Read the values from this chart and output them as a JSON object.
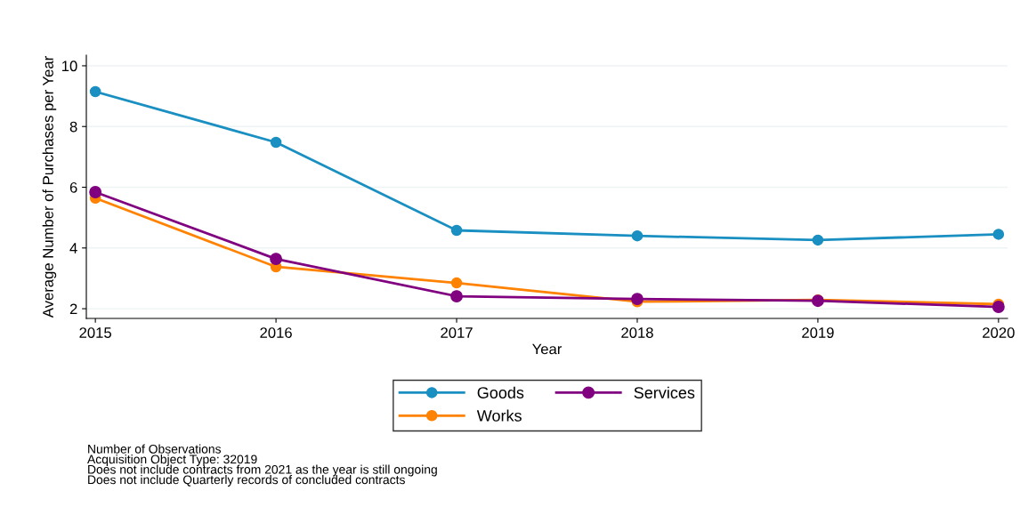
{
  "chart_data": {
    "type": "line",
    "xlabel": "Year",
    "ylabel": "Average Number of Purchases per Year",
    "x": [
      2015,
      2016,
      2017,
      2018,
      2019,
      2020
    ],
    "series": [
      {
        "name": "Goods",
        "color": "#1a8fc1",
        "values": [
          9.15,
          7.48,
          4.58,
          4.4,
          4.26,
          4.45
        ]
      },
      {
        "name": "Services",
        "color": "#800080",
        "values": [
          5.84,
          3.64,
          2.41,
          2.32,
          2.26,
          2.06
        ]
      },
      {
        "name": "Works",
        "color": "#ff8200",
        "values": [
          5.64,
          3.38,
          2.85,
          2.23,
          2.29,
          2.15
        ]
      }
    ],
    "xlim": [
      2014.95,
      2020.05
    ],
    "xticks": [
      2015,
      2016,
      2017,
      2018,
      2019,
      2020
    ],
    "ylim": [
      1.68,
      10.35
    ],
    "yticks": [
      2,
      4,
      6,
      8,
      10
    ],
    "grid": "y",
    "legend": "bottom",
    "marker": "circle",
    "line_style": "solid",
    "annotations": [
      "Number of Observations",
      "Acquisition Object Type: 32019",
      "Does not include contracts from 2021 as the year is still ongoing",
      "Does not include Quarterly records of concluded contracts"
    ]
  }
}
